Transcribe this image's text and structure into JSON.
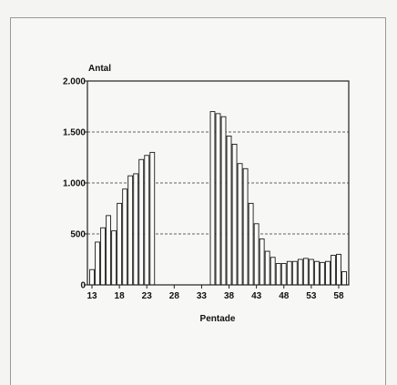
{
  "chart_data": {
    "type": "bar",
    "ylabel": "Antal",
    "xlabel": "Pentade",
    "ylim": [
      0,
      2000
    ],
    "yticks": [
      {
        "value": 0,
        "label": "0"
      },
      {
        "value": 500,
        "label": "500"
      },
      {
        "value": 1000,
        "label": "1.000"
      },
      {
        "value": 1500,
        "label": "1.500"
      },
      {
        "value": 2000,
        "label": "2.000"
      }
    ],
    "xticks": [
      "13",
      "18",
      "23",
      "28",
      "33",
      "38",
      "43",
      "48",
      "53",
      "58"
    ],
    "x_range": [
      13,
      59
    ],
    "gridlines": "horizontal dashed",
    "bars": [
      {
        "x": 13,
        "y": 150
      },
      {
        "x": 14,
        "y": 420
      },
      {
        "x": 15,
        "y": 560
      },
      {
        "x": 16,
        "y": 680
      },
      {
        "x": 17,
        "y": 530
      },
      {
        "x": 18,
        "y": 800
      },
      {
        "x": 19,
        "y": 940
      },
      {
        "x": 20,
        "y": 1070
      },
      {
        "x": 21,
        "y": 1090
      },
      {
        "x": 22,
        "y": 1230
      },
      {
        "x": 23,
        "y": 1270
      },
      {
        "x": 24,
        "y": 1300
      },
      {
        "x": 35,
        "y": 1700
      },
      {
        "x": 36,
        "y": 1680
      },
      {
        "x": 37,
        "y": 1650
      },
      {
        "x": 38,
        "y": 1460
      },
      {
        "x": 39,
        "y": 1380
      },
      {
        "x": 40,
        "y": 1190
      },
      {
        "x": 41,
        "y": 1140
      },
      {
        "x": 42,
        "y": 800
      },
      {
        "x": 43,
        "y": 600
      },
      {
        "x": 44,
        "y": 450
      },
      {
        "x": 45,
        "y": 330
      },
      {
        "x": 46,
        "y": 270
      },
      {
        "x": 47,
        "y": 210
      },
      {
        "x": 48,
        "y": 210
      },
      {
        "x": 49,
        "y": 230
      },
      {
        "x": 50,
        "y": 230
      },
      {
        "x": 51,
        "y": 250
      },
      {
        "x": 52,
        "y": 260
      },
      {
        "x": 53,
        "y": 250
      },
      {
        "x": 54,
        "y": 230
      },
      {
        "x": 55,
        "y": 220
      },
      {
        "x": 56,
        "y": 230
      },
      {
        "x": 57,
        "y": 290
      },
      {
        "x": 58,
        "y": 300
      },
      {
        "x": 59,
        "y": 130
      }
    ]
  }
}
